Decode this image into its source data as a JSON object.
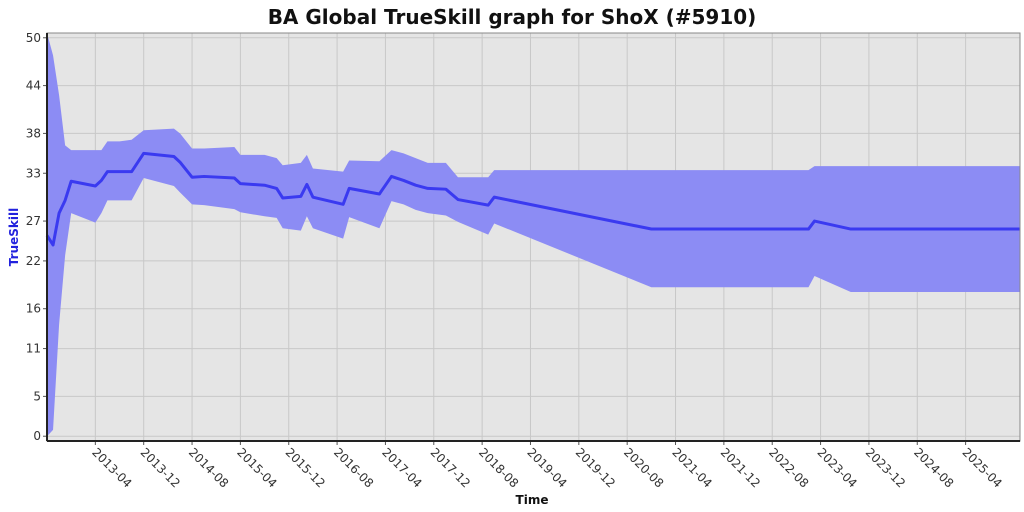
{
  "chart_data": {
    "type": "band-line",
    "title": "BA Global TrueSkill graph for ShoX (#5910)",
    "x_label": "Time",
    "y_label": "TrueSkill",
    "x": [
      "2012-08",
      "2012-09",
      "2012-10",
      "2012-11",
      "2012-12",
      "2013-04",
      "2013-05",
      "2013-06",
      "2013-08",
      "2013-10",
      "2013-12",
      "2014-05",
      "2014-06",
      "2014-08",
      "2014-10",
      "2015-03",
      "2015-04",
      "2015-08",
      "2015-10",
      "2015-11",
      "2016-02",
      "2016-03",
      "2016-04",
      "2016-09",
      "2016-10",
      "2017-03",
      "2017-05",
      "2017-07",
      "2017-09",
      "2017-11",
      "2018-02",
      "2018-04",
      "2018-09",
      "2018-10",
      "2020-12",
      "2023-02",
      "2023-03",
      "2023-09",
      "2026-01"
    ],
    "values": [
      25.2,
      24,
      28,
      29.6,
      32,
      31.4,
      32.1,
      33.2,
      33.2,
      33.2,
      35.5,
      35.1,
      34.4,
      32.5,
      32.6,
      32.4,
      31.7,
      31.5,
      31.1,
      29.9,
      30.1,
      31.6,
      30,
      29.1,
      31.1,
      30.4,
      32.6,
      32.1,
      31.5,
      31.1,
      31,
      29.7,
      29,
      30,
      26,
      26,
      27,
      26,
      26
    ],
    "upper": [
      50.6,
      47.8,
      42.8,
      36.5,
      35.9,
      35.9,
      35.9,
      37,
      37,
      37.2,
      38.4,
      38.6,
      38,
      36.1,
      36.1,
      36.3,
      35.3,
      35.3,
      34.9,
      34,
      34.3,
      35.3,
      33.6,
      33.2,
      34.6,
      34.5,
      35.9,
      35.5,
      34.9,
      34.3,
      34.3,
      32.5,
      32.5,
      33.4,
      33.4,
      33.4,
      33.9,
      33.9,
      33.9
    ],
    "lower": [
      0,
      0.8,
      14,
      22.7,
      28,
      26.8,
      28,
      29.6,
      29.6,
      29.6,
      32.4,
      31.4,
      30.6,
      29.1,
      29,
      28.5,
      28.1,
      27.6,
      27.4,
      26.1,
      25.8,
      27.6,
      26.1,
      24.8,
      27.5,
      26.1,
      29.5,
      29.1,
      28.4,
      28,
      27.7,
      26.9,
      25.3,
      26.7,
      18.7,
      18.7,
      20.1,
      18.1,
      18.1
    ],
    "line_color": "#3a3af0",
    "band_color": "#8c8cf4",
    "xlim": [
      "2012-08",
      "2026-01"
    ],
    "xticks": [
      "2013-04",
      "2013-12",
      "2014-08",
      "2015-04",
      "2015-12",
      "2016-08",
      "2017-04",
      "2017-12",
      "2018-08",
      "2019-04",
      "2019-12",
      "2020-08",
      "2021-04",
      "2021-12",
      "2022-08",
      "2023-04",
      "2023-12",
      "2024-08",
      "2025-04"
    ],
    "ylim": [
      -0.6,
      50.6
    ],
    "yticks": [
      0,
      5,
      11,
      16,
      22,
      27,
      33,
      38,
      44,
      50
    ],
    "grid": true
  }
}
